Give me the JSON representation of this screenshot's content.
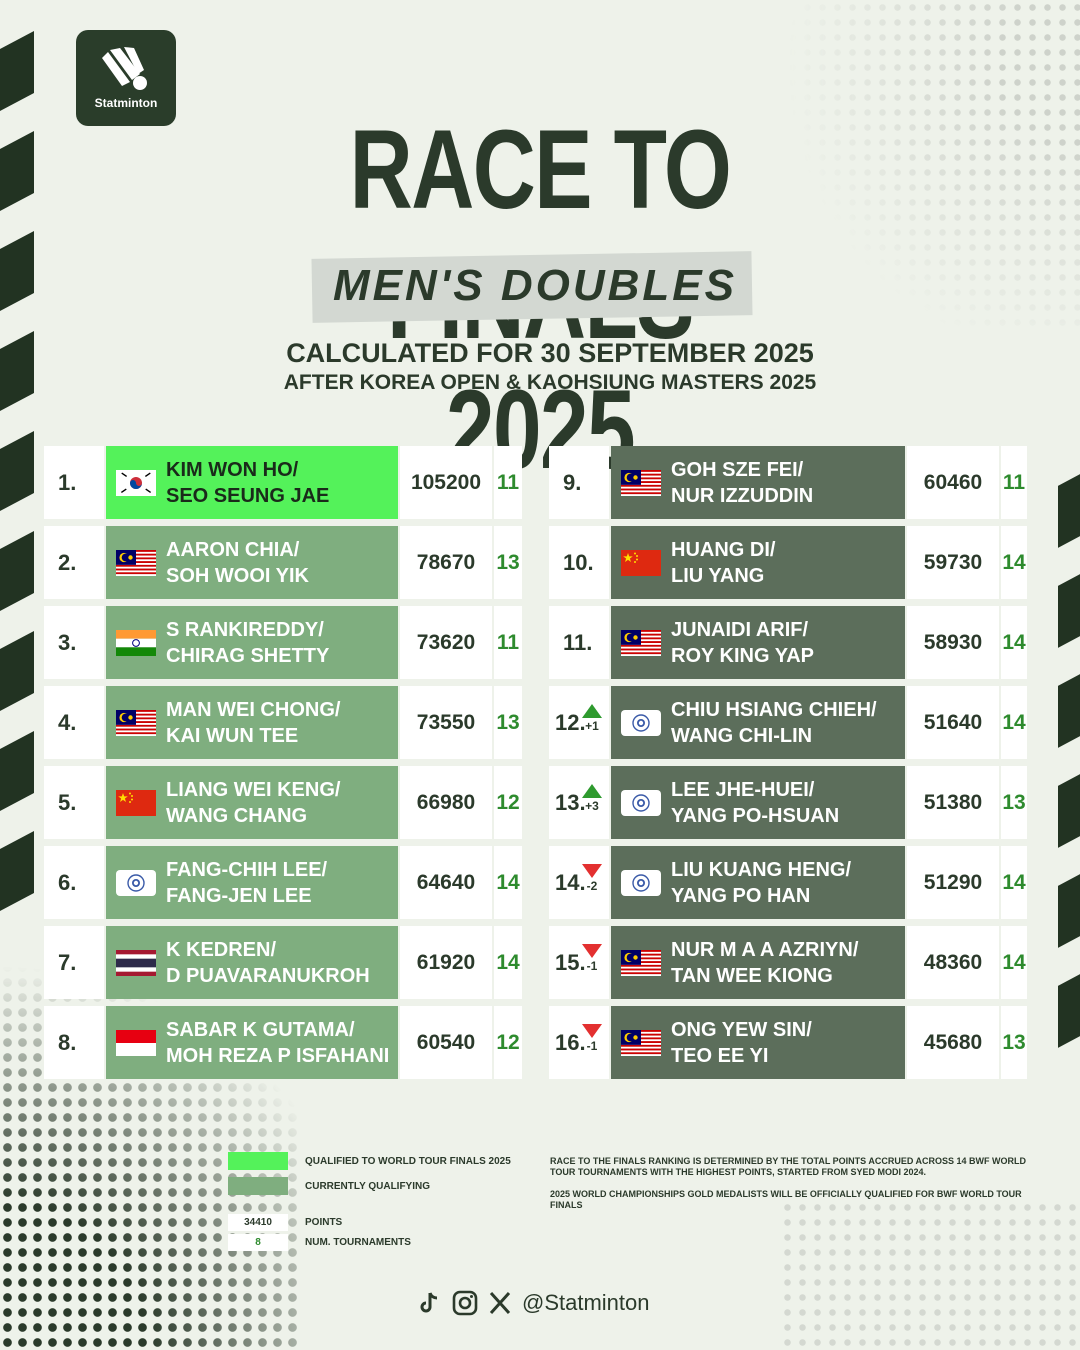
{
  "brand": {
    "name": "Statminton",
    "handle": "@Statminton"
  },
  "header": {
    "title": "RACE TO FINALS 2025",
    "subtitle": "MEN'S DOUBLES",
    "calc_line1": "CALCULATED FOR 30 SEPTEMBER 2025",
    "calc_line2": "AFTER KOREA OPEN & KAOHSIUNG MASTERS 2025"
  },
  "rankings": [
    {
      "rank": "1.",
      "flag": "KOR",
      "p1": "KIM WON HO/",
      "p2": "SEO SEUNG JAE",
      "points": "105200",
      "tournaments": "11",
      "status": "qualified",
      "trend": ""
    },
    {
      "rank": "2.",
      "flag": "MAS",
      "p1": "AARON CHIA/",
      "p2": "SOH WOOI YIK",
      "points": "78670",
      "tournaments": "13",
      "status": "qualifying",
      "trend": ""
    },
    {
      "rank": "3.",
      "flag": "IND",
      "p1": "S RANKIREDDY/",
      "p2": "CHIRAG SHETTY",
      "points": "73620",
      "tournaments": "11",
      "status": "qualifying",
      "trend": ""
    },
    {
      "rank": "4.",
      "flag": "MAS",
      "p1": "MAN WEI CHONG/",
      "p2": "KAI WUN TEE",
      "points": "73550",
      "tournaments": "13",
      "status": "qualifying",
      "trend": ""
    },
    {
      "rank": "5.",
      "flag": "CHN",
      "p1": "LIANG WEI KENG/",
      "p2": "WANG CHANG",
      "points": "66980",
      "tournaments": "12",
      "status": "qualifying",
      "trend": ""
    },
    {
      "rank": "6.",
      "flag": "TPE",
      "p1": "FANG-CHIH LEE/",
      "p2": "FANG-JEN LEE",
      "points": "64640",
      "tournaments": "14",
      "status": "qualifying",
      "trend": ""
    },
    {
      "rank": "7.",
      "flag": "THA",
      "p1": "K KEDREN/",
      "p2": "D PUAVARANUKROH",
      "points": "61920",
      "tournaments": "14",
      "status": "qualifying",
      "trend": ""
    },
    {
      "rank": "8.",
      "flag": "INA",
      "p1": "SABAR K GUTAMA/",
      "p2": "MOH REZA P ISFAHANI",
      "points": "60540",
      "tournaments": "12",
      "status": "qualifying",
      "trend": ""
    },
    {
      "rank": "9.",
      "flag": "MAS",
      "p1": "GOH SZE FEI/",
      "p2": "NUR IZZUDDIN",
      "points": "60460",
      "tournaments": "11",
      "status": "out",
      "trend": ""
    },
    {
      "rank": "10.",
      "flag": "CHN",
      "p1": "HUANG DI/",
      "p2": "LIU YANG",
      "points": "59730",
      "tournaments": "14",
      "status": "out",
      "trend": ""
    },
    {
      "rank": "11.",
      "flag": "MAS",
      "p1": "JUNAIDI ARIF/",
      "p2": "ROY KING YAP",
      "points": "58930",
      "tournaments": "14",
      "status": "out",
      "trend": ""
    },
    {
      "rank": "12.",
      "flag": "TPE",
      "p1": "CHIU HSIANG CHIEH/",
      "p2": "WANG CHI-LIN",
      "points": "51640",
      "tournaments": "14",
      "status": "out",
      "trend": "+1",
      "direction": "up"
    },
    {
      "rank": "13.",
      "flag": "TPE",
      "p1": "LEE JHE-HUEI/",
      "p2": "YANG PO-HSUAN",
      "points": "51380",
      "tournaments": "13",
      "status": "out",
      "trend": "+3",
      "direction": "up"
    },
    {
      "rank": "14.",
      "flag": "TPE",
      "p1": "LIU KUANG HENG/",
      "p2": "YANG PO HAN",
      "points": "51290",
      "tournaments": "14",
      "status": "out",
      "trend": "-2",
      "direction": "down"
    },
    {
      "rank": "15.",
      "flag": "MAS",
      "p1": "NUR M A A AZRIYN/",
      "p2": "TAN WEE KIONG",
      "points": "48360",
      "tournaments": "14",
      "status": "out",
      "trend": "-1",
      "direction": "down"
    },
    {
      "rank": "16.",
      "flag": "MAS",
      "p1": "ONG YEW SIN/",
      "p2": "TEO EE YI",
      "points": "45680",
      "tournaments": "13",
      "status": "out",
      "trend": "-1",
      "direction": "down"
    }
  ],
  "legend": {
    "qualified": "QUALIFIED TO WORLD TOUR FINALS 2025",
    "qualifying": "CURRENTLY QUALIFYING",
    "points_example": "34410",
    "points_label": "POINTS",
    "tournaments_example": "8",
    "tournaments_label": "NUM. TOURNAMENTS"
  },
  "notes": {
    "note1": "RACE TO THE FINALS RANKING IS DETERMINED BY THE TOTAL POINTS ACCRUED ACROSS 14 BWF WORLD TOUR TOURNAMENTS WITH THE HIGHEST POINTS, STARTED FROM SYED MODI 2024.",
    "note2": "2025 WORLD CHAMPIONSHIPS GOLD MEDALISTS WILL BE OFFICIALLY QUALIFIED FOR BWF WORLD TOUR FINALS"
  },
  "colors": {
    "qualified": "#54f25a",
    "qualifying": "#7fae7f",
    "not_qualifying": "#5c6e5b",
    "accent_dark": "#2b3a2b",
    "trend_up": "#2e9a2e",
    "trend_down": "#e33030"
  }
}
